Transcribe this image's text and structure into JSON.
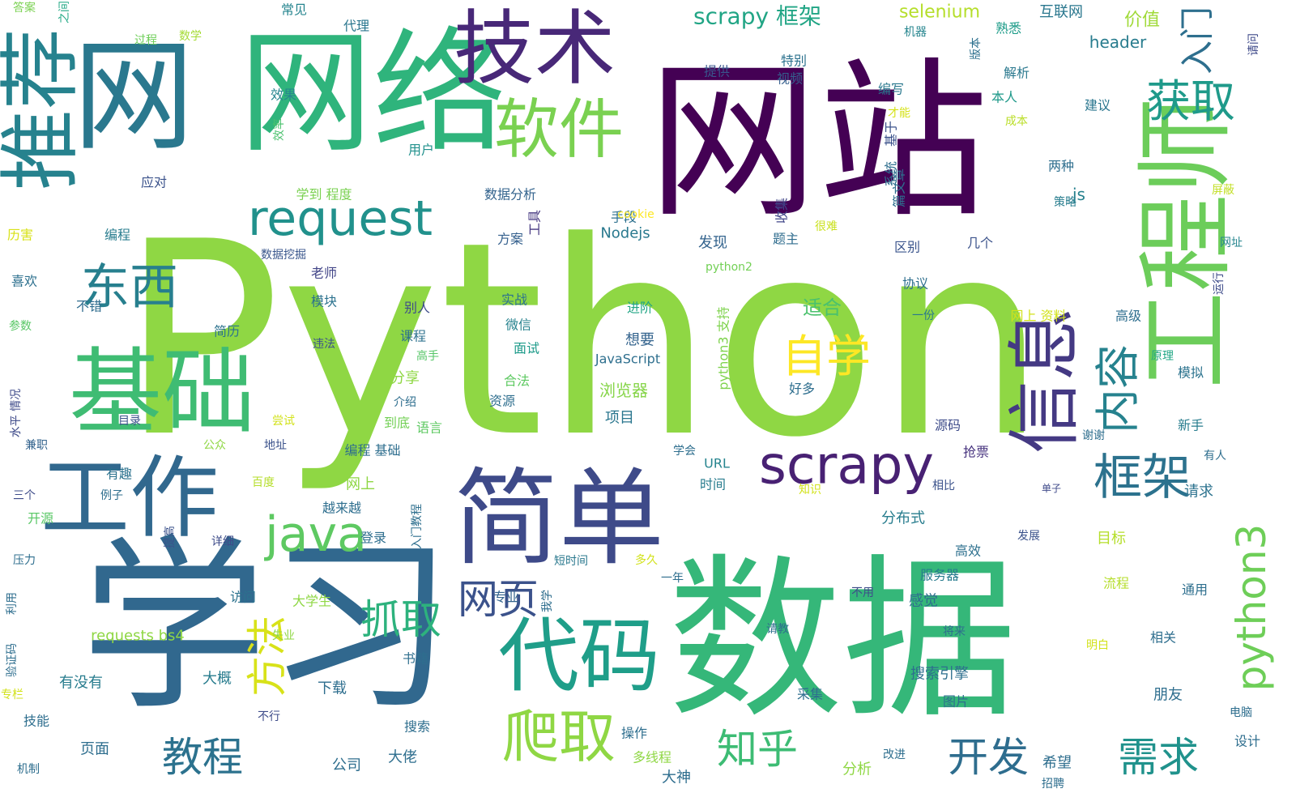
{
  "words": [
    {
      "text": "Python",
      "color": "#8fd744"
    },
    {
      "text": "网站",
      "color": "#440154"
    },
    {
      "text": "数据",
      "color": "#35b779"
    },
    {
      "text": "学习",
      "color": "#31688e"
    },
    {
      "text": "网络",
      "color": "#2fb47c"
    },
    {
      "text": "简单",
      "color": "#3e4a89"
    },
    {
      "text": "工程师",
      "color": "#6ccd5a"
    },
    {
      "text": "网",
      "color": "#2a788e"
    },
    {
      "text": "技术",
      "color": "#482878"
    },
    {
      "text": "推荐",
      "color": "#26828e"
    },
    {
      "text": "基础",
      "color": "#3fbc73"
    },
    {
      "text": "工作",
      "color": "#31688e"
    },
    {
      "text": "代码",
      "color": "#1f9e89"
    },
    {
      "text": "信息",
      "color": "#443983"
    },
    {
      "text": "软件",
      "color": "#7ad151"
    },
    {
      "text": "scrapy",
      "color": "#482173"
    },
    {
      "text": "request",
      "color": "#21918c"
    },
    {
      "text": "爬取",
      "color": "#8fd744"
    },
    {
      "text": "java",
      "color": "#5ec962"
    },
    {
      "text": "东西",
      "color": "#277f8e"
    },
    {
      "text": "框架",
      "color": "#2c728e"
    },
    {
      "text": "自学",
      "color": "#fde725"
    },
    {
      "text": "内容",
      "color": "#26828e"
    },
    {
      "text": "获取",
      "color": "#1f9a8a"
    },
    {
      "text": "抓取",
      "color": "#2db27d"
    },
    {
      "text": "方法",
      "color": "#d8e219"
    },
    {
      "text": "网页",
      "color": "#3b528b"
    },
    {
      "text": "python3",
      "color": "#6ece58"
    },
    {
      "text": "教程",
      "color": "#2c728e"
    },
    {
      "text": "知乎",
      "color": "#3dbc74"
    },
    {
      "text": "开发",
      "color": "#2e6d8e"
    },
    {
      "text": "需求",
      "color": "#20928c"
    },
    {
      "text": "入门",
      "color": "#2e6f8e"
    },
    {
      "text": "scrapy 框架",
      "color": "#21a585"
    },
    {
      "text": "selenium",
      "color": "#b5de2b"
    },
    {
      "text": "互联网",
      "color": "#2a778e"
    },
    {
      "text": "价值",
      "color": "#a0da39"
    },
    {
      "text": "header",
      "color": "#287c8e"
    },
    {
      "text": "答案",
      "color": "#7ad151"
    },
    {
      "text": "之间",
      "color": "#22a884"
    },
    {
      "text": "常见",
      "color": "#25848e"
    },
    {
      "text": "代理",
      "color": "#2a768e"
    },
    {
      "text": "熟悉",
      "color": "#1e9c89"
    },
    {
      "text": "解析",
      "color": "#2a788e"
    },
    {
      "text": "机器",
      "color": "#25858e"
    },
    {
      "text": "版本",
      "color": "#2d708e"
    },
    {
      "text": "请问",
      "color": "#3e4989"
    },
    {
      "text": "过程",
      "color": "#6ece58"
    },
    {
      "text": "数学",
      "color": "#a5db36"
    },
    {
      "text": "特别",
      "color": "#2c728e"
    },
    {
      "text": "提供",
      "color": "#39568c"
    },
    {
      "text": "视频",
      "color": "#355f8d"
    },
    {
      "text": "编写",
      "color": "#2a788e"
    },
    {
      "text": "本人",
      "color": "#1f998a"
    },
    {
      "text": "效果",
      "color": "#25848e"
    },
    {
      "text": "才能",
      "color": "#d5e21a"
    },
    {
      "text": "成本",
      "color": "#bade28"
    },
    {
      "text": "建议",
      "color": "#2a768e"
    },
    {
      "text": "效率",
      "color": "#4ac16d"
    },
    {
      "text": "用户",
      "color": "#21918c"
    },
    {
      "text": "基于",
      "color": "#3b528b"
    },
    {
      "text": "两种",
      "color": "#2e6e8e"
    },
    {
      "text": "系统",
      "color": "#2e6e8e"
    },
    {
      "text": "应对",
      "color": "#3b528b"
    },
    {
      "text": "数据分析",
      "color": "#33638d"
    },
    {
      "text": "学到 程度",
      "color": "#7ad151"
    },
    {
      "text": "js",
      "color": "#26818e"
    },
    {
      "text": "篇文章",
      "color": "#2e6f8e"
    },
    {
      "text": "收集",
      "color": "#404688"
    },
    {
      "text": "屏蔽",
      "color": "#c2df23"
    },
    {
      "text": "策略",
      "color": "#287d8e"
    },
    {
      "text": "手段",
      "color": "#2d708e"
    },
    {
      "text": "cookie",
      "color": "#fde725"
    },
    {
      "text": "很难",
      "color": "#cae11f"
    },
    {
      "text": "历害",
      "color": "#d8e219"
    },
    {
      "text": "编程",
      "color": "#287c8e"
    },
    {
      "text": "工具",
      "color": "#453781"
    },
    {
      "text": "方案",
      "color": "#35608d"
    },
    {
      "text": "题主",
      "color": "#2f6c8e"
    },
    {
      "text": "Nodejs",
      "color": "#29798e"
    },
    {
      "text": "网址",
      "color": "#25858e"
    },
    {
      "text": "数据挖掘",
      "color": "#39568c"
    },
    {
      "text": "发现",
      "color": "#33638d"
    },
    {
      "text": "区别",
      "color": "#3a548c"
    },
    {
      "text": "几个",
      "color": "#3b528b"
    },
    {
      "text": "python2",
      "color": "#73d056"
    },
    {
      "text": "运行",
      "color": "#3e4c8a"
    },
    {
      "text": "喜欢",
      "color": "#2d708e"
    },
    {
      "text": "老师",
      "color": "#414487"
    },
    {
      "text": "协议",
      "color": "#2e6f8e"
    },
    {
      "text": "不错",
      "color": "#2f6c8e"
    },
    {
      "text": "模块",
      "color": "#2c728e"
    },
    {
      "text": "实战",
      "color": "#2c738e"
    },
    {
      "text": "进阶",
      "color": "#21a585"
    },
    {
      "text": "适合",
      "color": "#4ac16d"
    },
    {
      "text": "一份",
      "color": "#2a788e"
    },
    {
      "text": "网上 资料",
      "color": "#d2e21b"
    },
    {
      "text": "高级",
      "color": "#2e6e8e"
    },
    {
      "text": "参数",
      "color": "#58c765"
    },
    {
      "text": "别人",
      "color": "#3e4c8a"
    },
    {
      "text": "微信",
      "color": "#26828e"
    },
    {
      "text": "python3 支持",
      "color": "#7fd34e"
    },
    {
      "text": "简历",
      "color": "#2c728e"
    },
    {
      "text": "课程",
      "color": "#2d718e"
    },
    {
      "text": "想要",
      "color": "#33638d"
    },
    {
      "text": "违法",
      "color": "#3b528b"
    },
    {
      "text": "高手",
      "color": "#56c667"
    },
    {
      "text": "面试",
      "color": "#1e9b8a"
    },
    {
      "text": "JavaScript",
      "color": "#2e6f8e"
    },
    {
      "text": "原理",
      "color": "#22a785"
    },
    {
      "text": "水平 情况",
      "color": "#3e4a89"
    },
    {
      "text": "分享",
      "color": "#8fd744"
    },
    {
      "text": "合法",
      "color": "#5ec962"
    },
    {
      "text": "浏览器",
      "color": "#86d549"
    },
    {
      "text": "好多",
      "color": "#2e6e8e"
    },
    {
      "text": "模拟",
      "color": "#2c738e"
    },
    {
      "text": "介绍",
      "color": "#2e6e8e"
    },
    {
      "text": "资源",
      "color": "#2e6e8e"
    },
    {
      "text": "尝试",
      "color": "#d2e21b"
    },
    {
      "text": "到底",
      "color": "#73d056"
    },
    {
      "text": "项目",
      "color": "#2a768e"
    },
    {
      "text": "目录",
      "color": "#3b528b"
    },
    {
      "text": "语言",
      "color": "#5ec962"
    },
    {
      "text": "新手",
      "color": "#287d8e"
    },
    {
      "text": "源码",
      "color": "#3e4c8a"
    },
    {
      "text": "公众",
      "color": "#8fd744"
    },
    {
      "text": "地址",
      "color": "#3b528b"
    },
    {
      "text": "编程 基础",
      "color": "#2e6e8e"
    },
    {
      "text": "学会",
      "color": "#2e6e8e"
    },
    {
      "text": "谢谢",
      "color": "#2e6e8e"
    },
    {
      "text": "有人",
      "color": "#2e6e8e"
    },
    {
      "text": "抢票",
      "color": "#46327e"
    },
    {
      "text": "兼职",
      "color": "#33638d"
    },
    {
      "text": "有趣",
      "color": "#2c728e"
    },
    {
      "text": "URL",
      "color": "#25848e"
    },
    {
      "text": "百度",
      "color": "#b5de2b"
    },
    {
      "text": "三个",
      "color": "#3e4c8a"
    },
    {
      "text": "例子",
      "color": "#2e6e8e"
    },
    {
      "text": "时间",
      "color": "#287c8e"
    },
    {
      "text": "网上",
      "color": "#8fd744"
    },
    {
      "text": "知识",
      "color": "#d2e21b"
    },
    {
      "text": "相比",
      "color": "#3b528b"
    },
    {
      "text": "请求",
      "color": "#2c728e"
    },
    {
      "text": "单子",
      "color": "#3e4989"
    },
    {
      "text": "开源",
      "color": "#58c765"
    },
    {
      "text": "越来越",
      "color": "#2e6e8e"
    },
    {
      "text": "入门教程",
      "color": "#2e6f8e"
    },
    {
      "text": "分布式",
      "color": "#287d8e"
    },
    {
      "text": "提高",
      "color": "#3b528b"
    },
    {
      "text": "登录",
      "color": "#2e6e8e"
    },
    {
      "text": "目标",
      "color": "#b5de2b"
    },
    {
      "text": "高效",
      "color": "#2d708e"
    },
    {
      "text": "压力",
      "color": "#2e6e8e"
    },
    {
      "text": "详细",
      "color": "#3e4c8a"
    },
    {
      "text": "短时间",
      "color": "#2a788e"
    },
    {
      "text": "多久",
      "color": "#d2e21b"
    },
    {
      "text": "发展",
      "color": "#3b528b"
    },
    {
      "text": "利用",
      "color": "#2e6e8e"
    },
    {
      "text": "访问",
      "color": "#2c728e"
    },
    {
      "text": "大学生",
      "color": "#8fd744"
    },
    {
      "text": "专业",
      "color": "#33638d"
    },
    {
      "text": "我学",
      "color": "#2e6e8e"
    },
    {
      "text": "一年",
      "color": "#2e6e8e"
    },
    {
      "text": "服务器",
      "color": "#287c8e"
    },
    {
      "text": "流程",
      "color": "#b5de2b"
    },
    {
      "text": "通用",
      "color": "#2e6f8e"
    },
    {
      "text": "不用",
      "color": "#3e4c8a"
    },
    {
      "text": "感觉",
      "color": "#2e6e8e"
    },
    {
      "text": "requests bs4",
      "color": "#8fd744"
    },
    {
      "text": "请教",
      "color": "#2e6e8e"
    },
    {
      "text": "将来",
      "color": "#2e6e8e"
    },
    {
      "text": "相关",
      "color": "#2e6e8e"
    },
    {
      "text": "验证码",
      "color": "#2e6e8e"
    },
    {
      "text": "失业",
      "color": "#8fd744"
    },
    {
      "text": "书籍",
      "color": "#2e6e8e"
    },
    {
      "text": "明白",
      "color": "#d2e21b"
    },
    {
      "text": "专栏",
      "color": "#d2e21b"
    },
    {
      "text": "有没有",
      "color": "#287c8e"
    },
    {
      "text": "大概",
      "color": "#287c8e"
    },
    {
      "text": "下载",
      "color": "#2e6e8e"
    },
    {
      "text": "搜索引擎",
      "color": "#2e6f8e"
    },
    {
      "text": "图片",
      "color": "#2e6e8e"
    },
    {
      "text": "朋友",
      "color": "#2e6e8e"
    },
    {
      "text": "采集",
      "color": "#2e6e8e"
    },
    {
      "text": "不行",
      "color": "#3e4c8a"
    },
    {
      "text": "技能",
      "color": "#2e6e8e"
    },
    {
      "text": "搜索",
      "color": "#2e6e8e"
    },
    {
      "text": "操作",
      "color": "#2e6e8e"
    },
    {
      "text": "电脑",
      "color": "#2e6e8e"
    },
    {
      "text": "页面",
      "color": "#2e6e8e"
    },
    {
      "text": "大佬",
      "color": "#2e6e8e"
    },
    {
      "text": "公司",
      "color": "#2e6e8e"
    },
    {
      "text": "机制",
      "color": "#2e6e8e"
    },
    {
      "text": "多线程",
      "color": "#8fd744"
    },
    {
      "text": "大神",
      "color": "#2e6e8e"
    },
    {
      "text": "分析",
      "color": "#8fd744"
    },
    {
      "text": "改进",
      "color": "#2e6e8e"
    },
    {
      "text": "希望",
      "color": "#2e6e8e"
    },
    {
      "text": "招聘",
      "color": "#2e6e8e"
    },
    {
      "text": "设计",
      "color": "#2e6e8e"
    }
  ]
}
